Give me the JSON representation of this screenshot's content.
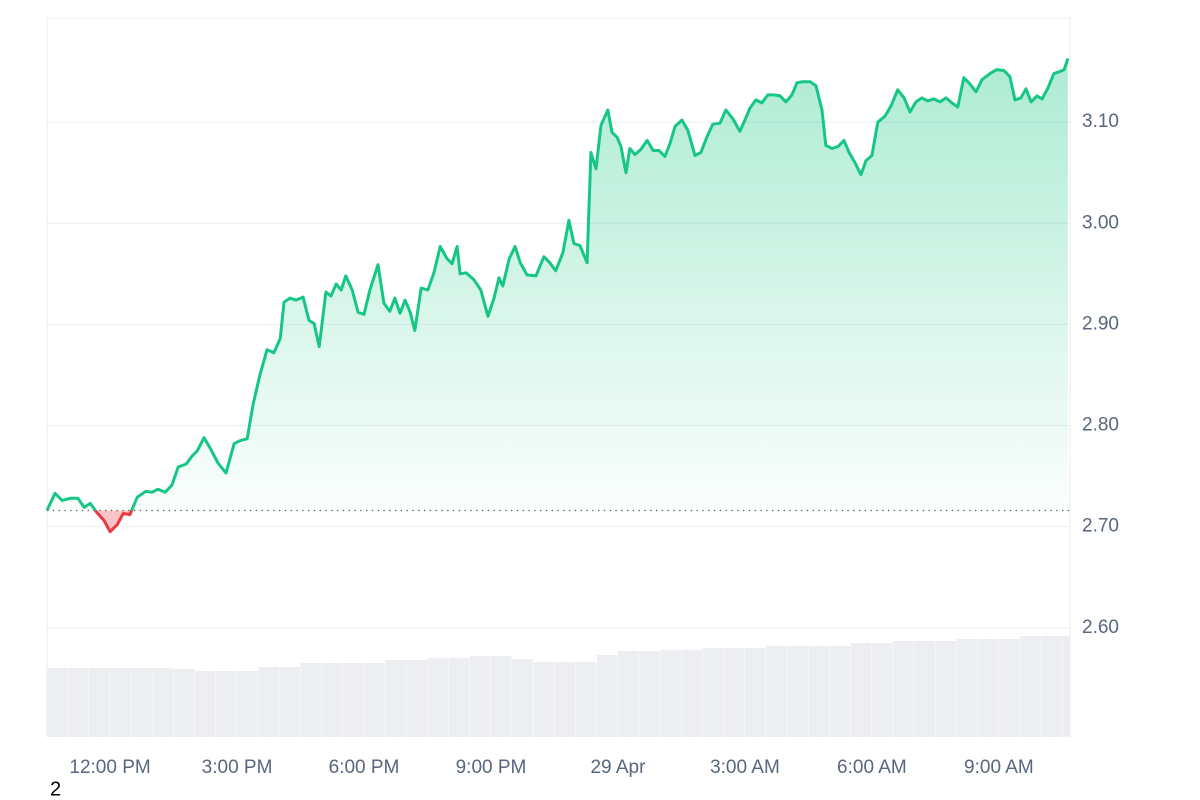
{
  "chart_data": {
    "type": "line",
    "x": [
      10.51,
      10.7,
      10.87,
      11.06,
      11.24,
      11.39,
      11.53,
      11.69,
      11.86,
      12.0,
      12.17,
      12.31,
      12.47,
      12.64,
      12.85,
      12.99,
      13.13,
      13.3,
      13.46,
      13.61,
      13.8,
      13.94,
      14.06,
      14.22,
      14.36,
      14.55,
      14.74,
      14.93,
      15.07,
      15.24,
      15.38,
      15.54,
      15.71,
      15.87,
      16.02,
      16.11,
      16.25,
      16.39,
      16.56,
      16.7,
      16.82,
      16.94,
      17.1,
      17.22,
      17.34,
      17.46,
      17.57,
      17.72,
      17.86,
      18.0,
      18.14,
      18.33,
      18.47,
      18.61,
      18.73,
      18.85,
      18.97,
      19.09,
      19.2,
      19.35,
      19.51,
      19.65,
      19.8,
      19.96,
      20.08,
      20.2,
      20.27,
      20.41,
      20.6,
      20.76,
      20.93,
      21.07,
      21.19,
      21.28,
      21.43,
      21.57,
      21.69,
      21.85,
      22.06,
      22.25,
      22.39,
      22.53,
      22.7,
      22.84,
      22.96,
      23.1,
      23.27,
      23.36,
      23.48,
      23.6,
      23.76,
      23.86,
      23.98,
      24.07,
      24.19,
      24.28,
      24.4,
      24.54,
      24.69,
      24.83,
      24.97,
      25.11,
      25.23,
      25.35,
      25.51,
      25.65,
      25.82,
      25.96,
      26.1,
      26.24,
      26.41,
      26.55,
      26.72,
      26.88,
      27.0,
      27.12,
      27.26,
      27.4,
      27.54,
      27.68,
      27.83,
      27.97,
      28.11,
      28.23,
      28.37,
      28.54,
      28.68,
      28.82,
      28.91,
      29.06,
      29.2,
      29.34,
      29.46,
      29.6,
      29.74,
      29.86,
      30.0,
      30.14,
      30.31,
      30.45,
      30.61,
      30.76,
      30.9,
      31.04,
      31.18,
      31.32,
      31.46,
      31.61,
      31.75,
      31.89,
      32.03,
      32.17,
      32.31,
      32.46,
      32.6,
      32.79,
      32.95,
      33.12,
      33.26,
      33.38,
      33.52,
      33.64,
      33.76,
      33.9,
      34.02,
      34.16,
      34.3,
      34.44,
      34.54,
      34.63
    ],
    "values": [
      2.716,
      2.733,
      2.726,
      2.728,
      2.728,
      2.719,
      2.723,
      2.714,
      2.706,
      2.695,
      2.702,
      2.713,
      2.712,
      2.729,
      2.735,
      2.734,
      2.737,
      2.734,
      2.741,
      2.759,
      2.762,
      2.77,
      2.775,
      2.788,
      2.778,
      2.763,
      2.753,
      2.782,
      2.785,
      2.787,
      2.821,
      2.85,
      2.875,
      2.872,
      2.886,
      2.922,
      2.926,
      2.924,
      2.927,
      2.904,
      2.901,
      2.878,
      2.932,
      2.928,
      2.94,
      2.934,
      2.948,
      2.934,
      2.912,
      2.91,
      2.934,
      2.959,
      2.921,
      2.913,
      2.926,
      2.911,
      2.924,
      2.912,
      2.894,
      2.936,
      2.934,
      2.951,
      2.977,
      2.965,
      2.96,
      2.977,
      2.95,
      2.951,
      2.944,
      2.934,
      2.908,
      2.926,
      2.946,
      2.938,
      2.965,
      2.977,
      2.961,
      2.949,
      2.948,
      2.967,
      2.961,
      2.953,
      2.971,
      3.003,
      2.98,
      2.978,
      2.961,
      3.07,
      3.054,
      3.097,
      3.112,
      3.09,
      3.085,
      3.076,
      3.05,
      3.074,
      3.068,
      3.073,
      3.082,
      3.072,
      3.072,
      3.066,
      3.079,
      3.096,
      3.102,
      3.092,
      3.067,
      3.07,
      3.085,
      3.098,
      3.099,
      3.112,
      3.103,
      3.091,
      3.102,
      3.114,
      3.122,
      3.119,
      3.127,
      3.127,
      3.126,
      3.12,
      3.127,
      3.139,
      3.14,
      3.14,
      3.136,
      3.112,
      3.077,
      3.074,
      3.076,
      3.082,
      3.07,
      3.06,
      3.048,
      3.062,
      3.067,
      3.1,
      3.106,
      3.116,
      3.132,
      3.124,
      3.11,
      3.12,
      3.124,
      3.121,
      3.123,
      3.12,
      3.124,
      3.119,
      3.115,
      3.144,
      3.138,
      3.13,
      3.142,
      3.148,
      3.152,
      3.151,
      3.145,
      3.122,
      3.124,
      3.133,
      3.12,
      3.126,
      3.123,
      3.134,
      3.148,
      3.15,
      3.152,
      3.163
    ],
    "color": "#16c784",
    "below_color": "#ea3943",
    "baseline": 2.716,
    "xlim": [
      10.51,
      34.68
    ],
    "xticks": [
      {
        "value": 12,
        "label": "12:00 PM"
      },
      {
        "value": 15,
        "label": "3:00 PM"
      },
      {
        "value": 18,
        "label": "6:00 PM"
      },
      {
        "value": 21,
        "label": "9:00 PM"
      },
      {
        "value": 24,
        "label": "29 Apr"
      },
      {
        "value": 27,
        "label": "3:00 AM"
      },
      {
        "value": 30,
        "label": "6:00 AM"
      },
      {
        "value": 33,
        "label": "9:00 AM"
      }
    ],
    "ylim": [
      2.492,
      3.203
    ],
    "yticks": [
      {
        "value": 2.6,
        "label": "2.60"
      },
      {
        "value": 2.7,
        "label": "2.70"
      },
      {
        "value": 2.8,
        "label": "2.80"
      },
      {
        "value": 2.9,
        "label": "2.90"
      },
      {
        "value": 3.0,
        "label": "3.00"
      },
      {
        "value": 3.1,
        "label": "3.10"
      }
    ],
    "grid": true,
    "volume": {
      "type": "bar",
      "axis": "y2",
      "color": "#eceef2",
      "x": [
        10.5,
        11,
        11.5,
        12,
        12.5,
        13,
        13.5,
        14,
        14.5,
        15,
        15.5,
        16,
        16.5,
        17,
        17.5,
        18,
        18.5,
        19,
        19.5,
        20,
        20.5,
        21,
        21.5,
        22,
        22.5,
        23,
        23.5,
        24,
        24.5,
        25,
        25.5,
        26,
        26.5,
        27,
        27.5,
        28,
        28.5,
        29,
        29.5,
        30,
        30.5,
        31,
        31.5,
        32,
        32.5,
        33,
        33.5,
        34,
        34.5
      ],
      "values": [
        69,
        69,
        69,
        69,
        69,
        69,
        68,
        66,
        66,
        66,
        70,
        70,
        74,
        74,
        74,
        74,
        77,
        77,
        79,
        79,
        81,
        81,
        78,
        75,
        75,
        75,
        82,
        86,
        86,
        87,
        87,
        89,
        89,
        89,
        91,
        91,
        91,
        91,
        94,
        94,
        96,
        96,
        96,
        98,
        98,
        98,
        101,
        101,
        101
      ]
    },
    "y2lim": [
      0,
      719
    ]
  },
  "corner_text": "2"
}
